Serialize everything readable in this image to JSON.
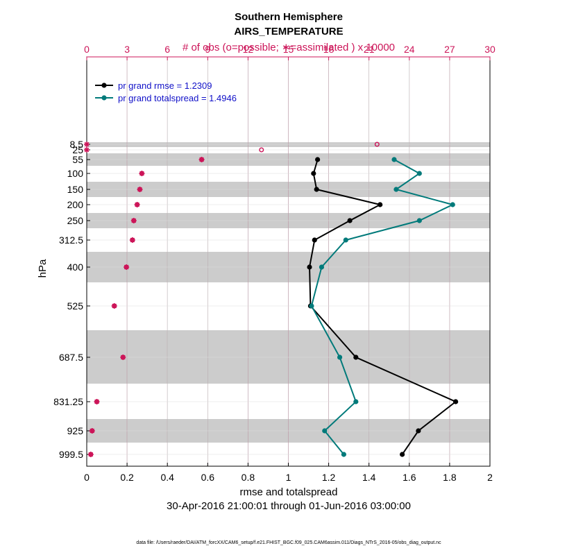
{
  "chart_data": {
    "type": "line",
    "title": "Southern Hemisphere",
    "subtitle": "AIRS_TEMPERATURE",
    "top_axis_label": "# of obs (o=possible; ∗=assimilated ) x 10000",
    "xlabel": "rmse and totalspread",
    "ylabel": "hPa",
    "date_range": "30-Apr-2016 21:00:01 through 01-Jun-2016 03:00:00",
    "footnote": "data file: /Users/raeder/DAI/ATM_forcXX/CAM6_setup/f.e21.FHIST_BGC.f09_025.CAM6assim.011/Diags_NTrS_2016-05/obs_diag_output.nc",
    "xlim": [
      0,
      2
    ],
    "x_ticks": [
      0,
      0.2,
      0.4,
      0.6,
      0.8,
      1,
      1.2,
      1.4,
      1.6,
      1.8,
      2
    ],
    "x_tick_labels": [
      "0",
      "0.2",
      "0.4",
      "0.6",
      "0.8",
      "1",
      "1.2",
      "1.4",
      "1.6",
      "1.8",
      "2"
    ],
    "top_xlim": [
      0,
      30
    ],
    "top_ticks": [
      0,
      3,
      6,
      9,
      12,
      15,
      18,
      21,
      24,
      27,
      30
    ],
    "top_tick_labels": [
      "0",
      "3",
      "6",
      "9",
      "12",
      "15",
      "18",
      "21",
      "24",
      "27",
      "30"
    ],
    "y_axis": "pressure (inverted, nonlinear)",
    "levels": [
      8.5,
      25,
      55,
      100,
      150,
      200,
      250,
      312.5,
      400,
      525,
      687.5,
      831.25,
      925,
      999.5
    ],
    "level_labels": [
      "8.5",
      "25",
      "55",
      "100",
      "150",
      "200",
      "250",
      "312.5",
      "400",
      "525",
      "687.5",
      "831.25",
      "925",
      "999.5"
    ],
    "series": [
      {
        "name": "pr grand rmse = 1.2309",
        "color": "#000000",
        "levels": [
          55,
          100,
          150,
          200,
          250,
          312.5,
          400,
          525,
          687.5,
          831.25,
          925,
          999.5
        ],
        "values": [
          1.145,
          1.125,
          1.14,
          1.455,
          1.305,
          1.13,
          1.105,
          1.11,
          1.335,
          1.83,
          1.645,
          1.565
        ]
      },
      {
        "name": "pr grand totalspread = 1.4946",
        "color": "#007a7a",
        "levels": [
          55,
          100,
          150,
          200,
          250,
          312.5,
          400,
          525,
          687.5,
          831.25,
          925,
          999.5
        ],
        "values": [
          1.525,
          1.65,
          1.535,
          1.815,
          1.65,
          1.285,
          1.165,
          1.115,
          1.255,
          1.335,
          1.18,
          1.275
        ]
      }
    ],
    "obs_possible": {
      "levels": [
        8.5,
        25,
        55,
        100,
        150,
        200,
        250,
        312.5,
        400,
        525,
        687.5,
        831.25,
        925,
        999.5
      ],
      "values": [
        21.6,
        13.0,
        8.55,
        4.1,
        3.95,
        3.75,
        3.5,
        3.4,
        2.95,
        2.05,
        2.7,
        0.75,
        0.4,
        0.3
      ]
    },
    "obs_assimilated": {
      "levels": [
        8.5,
        25,
        55,
        100,
        150,
        200,
        250,
        312.5,
        400,
        525,
        687.5,
        831.25,
        925,
        999.5
      ],
      "values": [
        0.0,
        0.0,
        8.55,
        4.1,
        3.95,
        3.75,
        3.5,
        3.4,
        2.95,
        2.05,
        2.7,
        0.75,
        0.4,
        0.3
      ]
    },
    "legend_position": "top-left",
    "grid": true,
    "colors": {
      "rmse": "#000000",
      "totalspread": "#007a7a",
      "obs": "#cc1458",
      "legend_text": "#1010c8",
      "band": "#cccccc"
    }
  }
}
